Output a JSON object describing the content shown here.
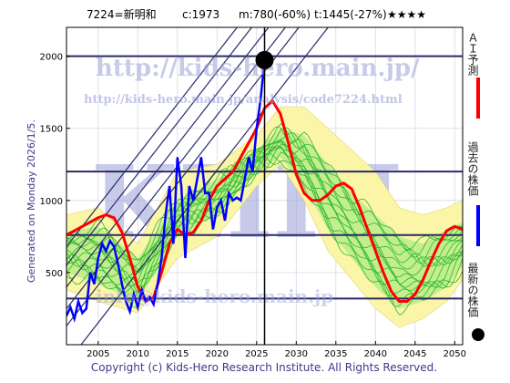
{
  "header": {
    "code_name": "7224=新明和",
    "current": "c:1973",
    "mid": "m:780(-60%)",
    "target": "t:1445(-27%)",
    "stars": "★★★★"
  },
  "generated": "Generated on Monday 2026/1/5.",
  "copyright": "Copyright (c) Kids-Hero Research Institute. All Rights Reserved.",
  "watermarks": {
    "url_top": "http://kids-hero.main.jp/",
    "url_analysis": "http://kids-hero.main.jp/analysis/code7224.html",
    "email": "info@kids-hero.main.jp",
    "big": "KHRI"
  },
  "legend": [
    {
      "label": "ＡＩ予測",
      "color": "#ff0000",
      "marker": "line"
    },
    {
      "label": "過去の株価",
      "color": "#0000ff",
      "marker": "line"
    },
    {
      "label": "最新の株価",
      "color": "#000000",
      "marker": "dot"
    }
  ],
  "chart_data": {
    "type": "line",
    "xlim": [
      2001,
      2051
    ],
    "ylim": [
      0,
      2200
    ],
    "xticks": [
      2005,
      2010,
      2015,
      2020,
      2025,
      2030,
      2035,
      2040,
      2045,
      2050
    ],
    "yticks": [
      500,
      1000,
      1500,
      2000
    ],
    "hlines": [
      2000,
      1200,
      760,
      320
    ],
    "vline": 2026,
    "latest_point": {
      "x": 2026,
      "y": 1973
    },
    "ai_prediction": {
      "name": "ＡＩ予測",
      "color": "#ff0000",
      "x": [
        2001,
        2003,
        2005,
        2006,
        2007,
        2008,
        2009,
        2010,
        2011,
        2012,
        2013,
        2014,
        2015,
        2016,
        2017,
        2018,
        2019,
        2020,
        2021,
        2022,
        2023,
        2024,
        2025,
        2026,
        2027,
        2028,
        2029,
        2030,
        2031,
        2032,
        2033,
        2034,
        2035,
        2036,
        2037,
        2038,
        2039,
        2040,
        2041,
        2042,
        2043,
        2044,
        2045,
        2046,
        2047,
        2048,
        2049,
        2050,
        2051
      ],
      "y": [
        760,
        820,
        880,
        900,
        880,
        780,
        600,
        400,
        300,
        330,
        500,
        700,
        800,
        760,
        780,
        860,
        1000,
        1100,
        1150,
        1200,
        1300,
        1400,
        1500,
        1640,
        1690,
        1600,
        1400,
        1180,
        1050,
        1000,
        1000,
        1040,
        1100,
        1120,
        1080,
        950,
        800,
        650,
        500,
        370,
        300,
        300,
        350,
        450,
        580,
        700,
        790,
        820,
        800
      ]
    },
    "past_price": {
      "name": "過去の株価",
      "color": "#0000ff",
      "x": [
        2001,
        2001.5,
        2002,
        2002.5,
        2003,
        2003.5,
        2004,
        2004.5,
        2005,
        2005.5,
        2006,
        2006.5,
        2007,
        2007.5,
        2008,
        2008.5,
        2009,
        2009.5,
        2010,
        2010.5,
        2011,
        2011.5,
        2012,
        2012.5,
        2013,
        2013.5,
        2014,
        2014.5,
        2015,
        2015.5,
        2016,
        2016.5,
        2017,
        2017.5,
        2018,
        2018.5,
        2019,
        2019.5,
        2020,
        2020.5,
        2021,
        2021.5,
        2022,
        2022.5,
        2023,
        2023.5,
        2024,
        2024.5,
        2025,
        2025.5,
        2026
      ],
      "y": [
        200,
        260,
        180,
        300,
        220,
        250,
        500,
        420,
        600,
        700,
        650,
        720,
        680,
        560,
        420,
        300,
        230,
        350,
        260,
        380,
        300,
        330,
        280,
        420,
        600,
        900,
        1100,
        700,
        1300,
        1100,
        600,
        1100,
        1000,
        1150,
        1300,
        1050,
        1050,
        800,
        950,
        1000,
        860,
        1050,
        1000,
        1020,
        1000,
        1150,
        1300,
        1200,
        1500,
        1700,
        1973
      ]
    },
    "band_outer": {
      "x": [
        2001,
        2005,
        2010,
        2015,
        2020,
        2025,
        2028,
        2031,
        2034,
        2037,
        2040,
        2043,
        2046,
        2049,
        2051
      ],
      "upper": [
        900,
        950,
        700,
        1200,
        1250,
        1450,
        1650,
        1650,
        1500,
        1350,
        1200,
        950,
        900,
        950,
        1000
      ],
      "lower": [
        380,
        300,
        220,
        600,
        750,
        1100,
        1250,
        1000,
        650,
        450,
        250,
        120,
        180,
        300,
        450
      ]
    },
    "band_inner": {
      "x": [
        2001,
        2005,
        2010,
        2015,
        2020,
        2025,
        2028,
        2031,
        2034,
        2037,
        2040,
        2043,
        2046,
        2049,
        2051
      ],
      "upper": [
        780,
        820,
        600,
        1000,
        1150,
        1350,
        1500,
        1450,
        1250,
        1050,
        900,
        750,
        700,
        800,
        850
      ],
      "lower": [
        500,
        420,
        300,
        750,
        900,
        1200,
        1300,
        1100,
        800,
        600,
        400,
        250,
        300,
        400,
        550
      ]
    },
    "scenario_count": 14,
    "trend_channels": [
      {
        "x0": 2001,
        "y0": 130,
        "x1": 2036,
        "y1": 2600
      },
      {
        "x0": 2001,
        "y0": 250,
        "x1": 2036,
        "y1": 2720
      },
      {
        "x0": 2001,
        "y0": 400,
        "x1": 2036,
        "y1": 2870
      },
      {
        "x0": 2001,
        "y0": 550,
        "x1": 2036,
        "y1": 3020
      },
      {
        "x0": 2001,
        "y0": 680,
        "x1": 2036,
        "y1": 3150
      },
      {
        "x0": 2001,
        "y0": -130,
        "x1": 2036,
        "y1": 2340
      }
    ]
  }
}
